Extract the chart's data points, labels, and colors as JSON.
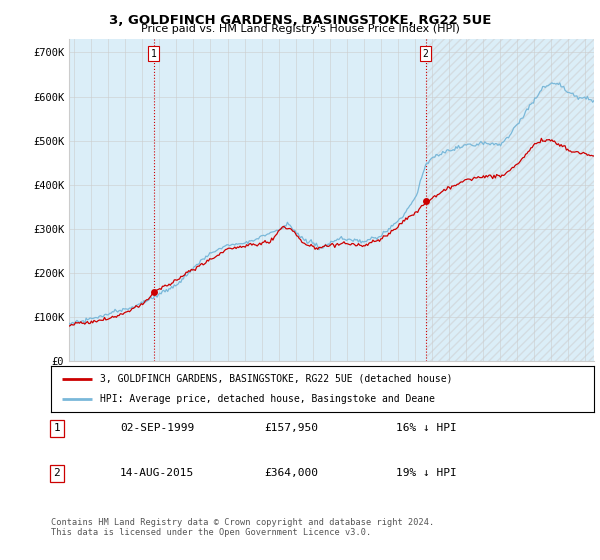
{
  "title": "3, GOLDFINCH GARDENS, BASINGSTOKE, RG22 5UE",
  "subtitle": "Price paid vs. HM Land Registry's House Price Index (HPI)",
  "ylabel_ticks": [
    "£0",
    "£100K",
    "£200K",
    "£300K",
    "£400K",
    "£500K",
    "£600K",
    "£700K"
  ],
  "ytick_values": [
    0,
    100000,
    200000,
    300000,
    400000,
    500000,
    600000,
    700000
  ],
  "ylim": [
    0,
    730000
  ],
  "xlim_start": 1994.7,
  "xlim_end": 2025.5,
  "sale1_date": 1999.67,
  "sale1_price": 157950,
  "sale1_label": "1",
  "sale2_date": 2015.62,
  "sale2_price": 364000,
  "sale2_label": "2",
  "legend_line1": "3, GOLDFINCH GARDENS, BASINGSTOKE, RG22 5UE (detached house)",
  "legend_line2": "HPI: Average price, detached house, Basingstoke and Deane",
  "table_row1": [
    "1",
    "02-SEP-1999",
    "£157,950",
    "16% ↓ HPI"
  ],
  "table_row2": [
    "2",
    "14-AUG-2015",
    "£364,000",
    "19% ↓ HPI"
  ],
  "footnote": "Contains HM Land Registry data © Crown copyright and database right 2024.\nThis data is licensed under the Open Government Licence v3.0.",
  "hpi_color": "#7ab8d9",
  "hpi_fill_color": "#dbeef8",
  "sale_color": "#cc0000",
  "dashed_line_color": "#cc0000",
  "background_color": "#ffffff",
  "grid_color": "#cccccc",
  "hatch_color": "#cccccc"
}
